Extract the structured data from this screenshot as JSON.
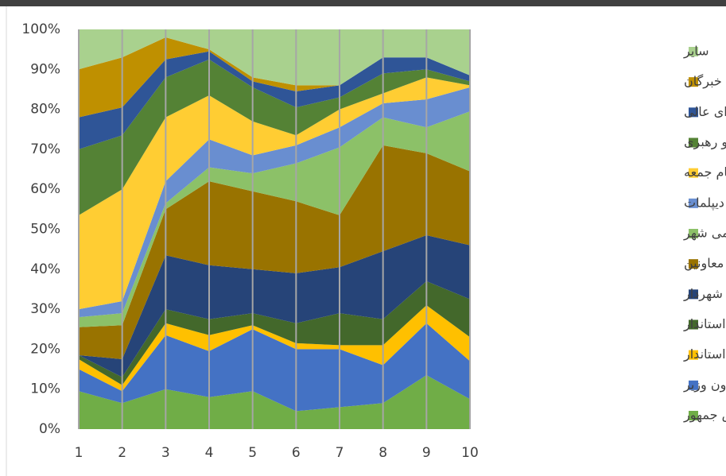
{
  "chart_data": {
    "type": "stacked_area_100",
    "x": [
      1,
      2,
      3,
      4,
      5,
      6,
      7,
      8,
      9,
      10
    ],
    "xlim": [
      1,
      10
    ],
    "xticks": [
      1,
      2,
      3,
      4,
      5,
      6,
      7,
      8,
      9,
      10
    ],
    "ylim": [
      0,
      100
    ],
    "yticks": [
      {
        "value": 0,
        "label": "0%"
      },
      {
        "value": 10,
        "label": "10%"
      },
      {
        "value": 20,
        "label": "20%"
      },
      {
        "value": 30,
        "label": "30%"
      },
      {
        "value": 40,
        "label": "40%"
      },
      {
        "value": 50,
        "label": "50%"
      },
      {
        "value": 60,
        "label": "60%"
      },
      {
        "value": 70,
        "label": "70%"
      },
      {
        "value": 80,
        "label": "80%"
      },
      {
        "value": 90,
        "label": "90%"
      },
      {
        "value": 100,
        "label": "100%"
      }
    ],
    "xgrid": true,
    "legend": "right",
    "series": [
      {
        "name": "وزیر و معاون رئیس جمهور",
        "color": "#70ad47",
        "values": [
          9.5,
          6.5,
          10,
          8,
          9.5,
          4.5,
          5.5,
          6.5,
          13.5,
          7.5
        ]
      },
      {
        "name": "معاون وزیر",
        "color": "#4472c4",
        "values": [
          5.5,
          3,
          13.5,
          11.5,
          15.5,
          15.5,
          14.5,
          9.5,
          13,
          9.5
        ]
      },
      {
        "name": "استاندار",
        "color": "#ffc000",
        "values": [
          2.5,
          1.5,
          3,
          4,
          1,
          1.5,
          1,
          5,
          4.5,
          6
        ]
      },
      {
        "name": "معاون استاندار",
        "color": "#43682b",
        "values": [
          1,
          2,
          3.5,
          4,
          3,
          5,
          8,
          6.5,
          6,
          9.5
        ]
      },
      {
        "name": "شهردار",
        "color": "#264478",
        "values": [
          0,
          4.5,
          13.5,
          13.5,
          11,
          12.5,
          11.5,
          17,
          11.5,
          13.5
        ]
      },
      {
        "name": "فرماندار و بخشدار و معاونین",
        "color": "#997300",
        "values": [
          7,
          8.5,
          11.5,
          21,
          19.5,
          18,
          13,
          26.5,
          20.5,
          18.5
        ]
      },
      {
        "name": "شورای اسلامی شهر",
        "color": "#8cc168",
        "values": [
          2.5,
          3,
          1.5,
          3.5,
          4.5,
          9.5,
          17,
          7,
          6.5,
          15
        ]
      },
      {
        "name": "دیپلمات",
        "color": "#698ed0",
        "values": [
          2,
          3,
          5.5,
          7,
          4.5,
          4.5,
          5,
          3.5,
          7,
          6
        ]
      },
      {
        "name": "امام جمعه",
        "color": "#ffcd33",
        "values": [
          23.5,
          28,
          16,
          11,
          8.5,
          2.5,
          4.5,
          2.5,
          5.5,
          0.5
        ]
      },
      {
        "name": "نماینده امام و رهبری",
        "color": "#548235",
        "values": [
          16.5,
          13.5,
          10,
          9,
          8.5,
          7,
          3,
          5,
          2,
          1
        ]
      },
      {
        "name": "شورای عالی",
        "color": "#2f5597",
        "values": [
          8,
          7,
          4.5,
          2,
          1.5,
          4,
          3,
          4,
          3,
          1.5
        ]
      },
      {
        "name": "مجلس خبرگان",
        "color": "#bf9000",
        "values": [
          12,
          12.5,
          5.5,
          0.5,
          1,
          1.5,
          0,
          0,
          0,
          0
        ]
      },
      {
        "name": "سایر",
        "color": "#a9d18e",
        "values": [
          10,
          7,
          2,
          5,
          12,
          14,
          14,
          7,
          7,
          11.5
        ]
      }
    ]
  }
}
